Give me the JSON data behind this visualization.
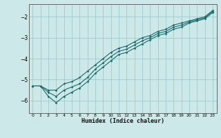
{
  "xlabel": "Humidex (Indice chaleur)",
  "bg_color": "#cce8e8",
  "grid_color": "#99cccc",
  "line_color": "#1a6b6b",
  "xlim": [
    -0.5,
    23.5
  ],
  "ylim": [
    -6.6,
    -1.4
  ],
  "yticks": [
    -6,
    -5,
    -4,
    -3,
    -2
  ],
  "xticks": [
    0,
    1,
    2,
    3,
    4,
    5,
    6,
    7,
    8,
    9,
    10,
    11,
    12,
    13,
    14,
    15,
    16,
    17,
    18,
    19,
    20,
    21,
    22,
    23
  ],
  "series": [
    {
      "x": [
        0,
        1,
        2,
        3,
        4,
        5,
        6,
        7,
        8,
        9,
        10,
        11,
        12,
        13,
        14,
        15,
        16,
        17,
        18,
        19,
        20,
        21,
        22,
        23
      ],
      "y": [
        -5.3,
        -5.3,
        -5.5,
        -5.5,
        -5.2,
        -5.1,
        -4.9,
        -4.6,
        -4.3,
        -4.0,
        -3.7,
        -3.5,
        -3.4,
        -3.2,
        -3.0,
        -2.9,
        -2.7,
        -2.6,
        -2.4,
        -2.3,
        -2.2,
        -2.1,
        -2.0,
        -1.7
      ]
    },
    {
      "x": [
        0,
        1,
        2,
        3,
        4,
        5,
        6,
        7,
        8,
        9,
        10,
        11,
        12,
        13,
        14,
        15,
        16,
        17,
        18,
        19,
        20,
        21,
        22,
        23
      ],
      "y": [
        -5.3,
        -5.3,
        -5.8,
        -6.1,
        -5.8,
        -5.6,
        -5.4,
        -5.1,
        -4.7,
        -4.4,
        -4.1,
        -3.8,
        -3.7,
        -3.5,
        -3.3,
        -3.1,
        -2.9,
        -2.8,
        -2.6,
        -2.5,
        -2.3,
        -2.2,
        -2.1,
        -1.8
      ]
    },
    {
      "x": [
        0,
        1,
        2,
        3,
        4,
        5,
        6,
        7,
        8,
        9,
        10,
        11,
        12,
        13,
        14,
        15,
        16,
        17,
        18,
        19,
        20,
        21,
        22,
        23
      ],
      "y": [
        -5.3,
        -5.3,
        -5.6,
        -5.8,
        -5.5,
        -5.35,
        -5.2,
        -4.9,
        -4.5,
        -4.2,
        -3.9,
        -3.65,
        -3.55,
        -3.35,
        -3.15,
        -3.0,
        -2.8,
        -2.7,
        -2.5,
        -2.4,
        -2.25,
        -2.15,
        -2.05,
        -1.75
      ]
    }
  ]
}
